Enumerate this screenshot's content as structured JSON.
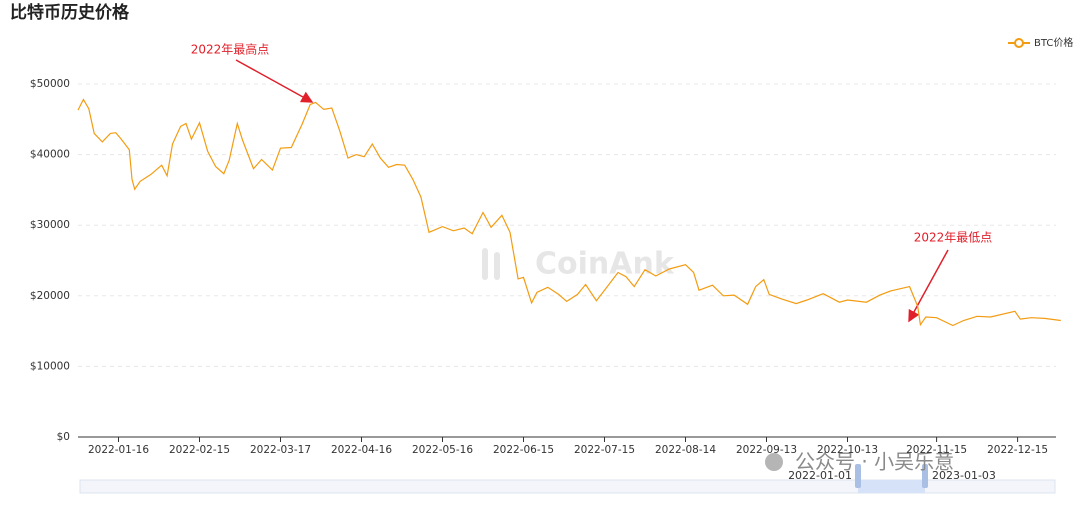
{
  "chart_data": {
    "type": "line",
    "title": "比特币历史价格",
    "x": [
      "2022-01-01",
      "2022-01-03",
      "2022-01-05",
      "2022-01-07",
      "2022-01-10",
      "2022-01-13",
      "2022-01-15",
      "2022-01-17",
      "2022-01-20",
      "2022-01-21",
      "2022-01-22",
      "2022-01-24",
      "2022-01-28",
      "2022-02-01",
      "2022-02-03",
      "2022-02-05",
      "2022-02-08",
      "2022-02-10",
      "2022-02-12",
      "2022-02-15",
      "2022-02-18",
      "2022-02-21",
      "2022-02-24",
      "2022-02-26",
      "2022-03-01",
      "2022-03-03",
      "2022-03-07",
      "2022-03-10",
      "2022-03-14",
      "2022-03-17",
      "2022-03-21",
      "2022-03-25",
      "2022-03-28",
      "2022-03-30",
      "2022-04-02",
      "2022-04-05",
      "2022-04-08",
      "2022-04-11",
      "2022-04-14",
      "2022-04-17",
      "2022-04-20",
      "2022-04-23",
      "2022-04-26",
      "2022-04-29",
      "2022-05-02",
      "2022-05-05",
      "2022-05-08",
      "2022-05-11",
      "2022-05-13",
      "2022-05-16",
      "2022-05-20",
      "2022-05-24",
      "2022-05-27",
      "2022-05-31",
      "2022-06-03",
      "2022-06-07",
      "2022-06-10",
      "2022-06-13",
      "2022-06-15",
      "2022-06-18",
      "2022-06-20",
      "2022-06-24",
      "2022-06-28",
      "2022-07-01",
      "2022-07-05",
      "2022-07-08",
      "2022-07-12",
      "2022-07-15",
      "2022-07-20",
      "2022-07-23",
      "2022-07-26",
      "2022-07-30",
      "2022-08-03",
      "2022-08-08",
      "2022-08-14",
      "2022-08-17",
      "2022-08-19",
      "2022-08-24",
      "2022-08-28",
      "2022-09-01",
      "2022-09-06",
      "2022-09-09",
      "2022-09-12",
      "2022-09-14",
      "2022-09-19",
      "2022-09-24",
      "2022-09-28",
      "2022-10-04",
      "2022-10-10",
      "2022-10-13",
      "2022-10-20",
      "2022-10-25",
      "2022-10-29",
      "2022-11-05",
      "2022-11-08",
      "2022-11-09",
      "2022-11-11",
      "2022-11-15",
      "2022-11-21",
      "2022-11-25",
      "2022-11-30",
      "2022-12-05",
      "2022-12-14",
      "2022-12-16",
      "2022-12-20",
      "2022-12-25",
      "2022-12-31"
    ],
    "series": [
      {
        "name": "BTC价格",
        "color": "#f39c12",
        "values": [
          46300,
          47800,
          46500,
          43000,
          41800,
          43000,
          43100,
          42200,
          40700,
          36500,
          35100,
          36200,
          37200,
          38500,
          37000,
          41500,
          44000,
          44400,
          42200,
          44500,
          40500,
          38300,
          37300,
          39200,
          44400,
          42000,
          38000,
          39300,
          37800,
          40900,
          41000,
          44300,
          47100,
          47400,
          46400,
          46600,
          43300,
          39500,
          40000,
          39700,
          41500,
          39500,
          38200,
          38600,
          38500,
          36500,
          34000,
          29000,
          29300,
          29800,
          29200,
          29600,
          28800,
          31800,
          29700,
          31400,
          29000,
          22400,
          22600,
          19000,
          20500,
          21200,
          20200,
          19200,
          20200,
          21600,
          19300,
          20800,
          23300,
          22700,
          21300,
          23700,
          22800,
          23800,
          24400,
          23300,
          20800,
          21500,
          20000,
          20100,
          18800,
          21300,
          22300,
          20200,
          19500,
          18900,
          19400,
          20300,
          19100,
          19400,
          19100,
          20100,
          20700,
          21300,
          18500,
          15900,
          17000,
          16900,
          15800,
          16500,
          17100,
          17000,
          17800,
          16700,
          16900,
          16800,
          16500
        ]
      }
    ],
    "xticks": [
      "2022-01-16",
      "2022-02-15",
      "2022-03-17",
      "2022-04-16",
      "2022-05-16",
      "2022-06-15",
      "2022-07-15",
      "2022-08-14",
      "2022-09-13",
      "2022-10-13",
      "2022-11-15",
      "2022-12-15"
    ],
    "ylim": [
      0,
      50000
    ],
    "yticks": [
      {
        "value": 0,
        "label": "$0"
      },
      {
        "value": 10000,
        "label": "$10000"
      },
      {
        "value": 20000,
        "label": "$20000"
      },
      {
        "value": 30000,
        "label": "$30000"
      },
      {
        "value": 40000,
        "label": "$40000"
      },
      {
        "value": 50000,
        "label": "$50000"
      }
    ],
    "grid": true,
    "legend": "top-right",
    "annotations": [
      "2022年最高点",
      "2022年最低点"
    ],
    "watermark": "CoinAnk",
    "zoom_labels": [
      "2022-01-01",
      "2023-01-03"
    ],
    "footer_watermark": "公众号 · 小吴乐意"
  }
}
